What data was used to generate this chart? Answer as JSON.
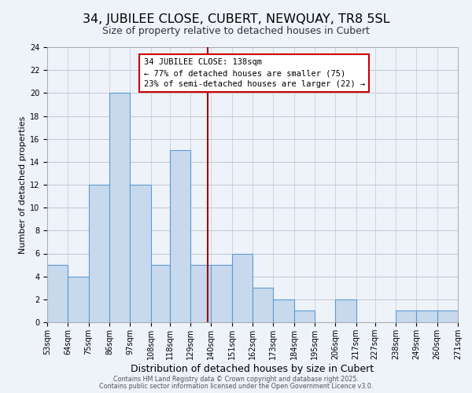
{
  "title": "34, JUBILEE CLOSE, CUBERT, NEWQUAY, TR8 5SL",
  "subtitle": "Size of property relative to detached houses in Cubert",
  "xlabel": "Distribution of detached houses by size in Cubert",
  "ylabel": "Number of detached properties",
  "bin_edges": [
    53,
    64,
    75,
    86,
    97,
    108,
    118,
    129,
    140,
    151,
    162,
    173,
    184,
    195,
    206,
    217,
    227,
    238,
    249,
    260,
    271
  ],
  "bar_heights": [
    5,
    4,
    12,
    20,
    12,
    5,
    15,
    5,
    5,
    6,
    3,
    2,
    1,
    0,
    2,
    0,
    0,
    1,
    1,
    1
  ],
  "bar_facecolor": "#c8d9ed",
  "bar_edgecolor": "#5b9bd5",
  "bar_linewidth": 0.8,
  "vline_x": 138,
  "vline_color": "#990000",
  "vline_linewidth": 1.5,
  "ylim": [
    0,
    24
  ],
  "yticks": [
    0,
    2,
    4,
    6,
    8,
    10,
    12,
    14,
    16,
    18,
    20,
    22,
    24
  ],
  "annotation_title": "34 JUBILEE CLOSE: 138sqm",
  "annotation_line1": "← 77% of detached houses are smaller (75)",
  "annotation_line2": "23% of semi-detached houses are larger (22) →",
  "annotation_box_edgecolor": "#cc0000",
  "annotation_box_facecolor": "#ffffff",
  "grid_color": "#c0c8d8",
  "background_color": "#eef2f9",
  "footnote1": "Contains HM Land Registry data © Crown copyright and database right 2025.",
  "footnote2": "Contains public sector information licensed under the Open Government Licence v3.0.",
  "title_fontsize": 11.5,
  "subtitle_fontsize": 9,
  "xlabel_fontsize": 9,
  "ylabel_fontsize": 8,
  "tick_label_fontsize": 7,
  "annotation_fontsize": 7.5,
  "footnote_fontsize": 5.8
}
